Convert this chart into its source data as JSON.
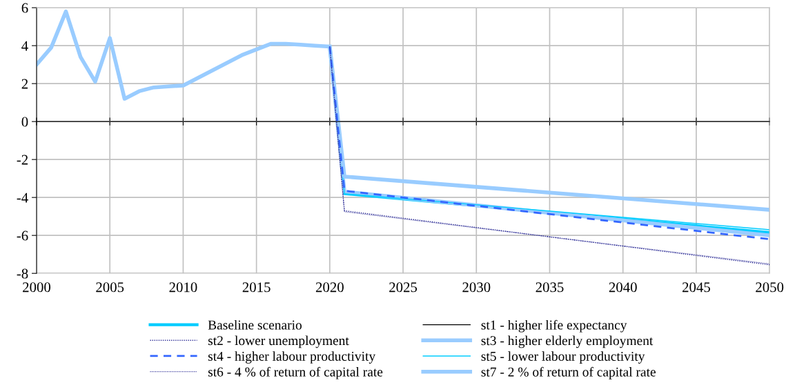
{
  "chart_data": {
    "type": "line",
    "x": [
      2000,
      2001,
      2002,
      2003,
      2004,
      2005,
      2006,
      2007,
      2008,
      2009,
      2010,
      2011,
      2012,
      2013,
      2014,
      2015,
      2016,
      2017,
      2018,
      2019,
      2020,
      2021,
      2050
    ],
    "series": [
      {
        "name": "Baseline scenario",
        "color": "#00ccff",
        "line_style": "solid",
        "values": [
          null,
          null,
          null,
          null,
          null,
          null,
          null,
          null,
          null,
          null,
          null,
          null,
          null,
          null,
          null,
          null,
          null,
          null,
          null,
          null,
          3.95,
          -3.8,
          -5.85
        ]
      },
      {
        "name": "st1 - higher life expectancy",
        "color": "#000000",
        "line_style": "solid",
        "values": [
          null,
          null,
          null,
          null,
          null,
          null,
          null,
          null,
          null,
          null,
          null,
          null,
          null,
          null,
          null,
          null,
          null,
          null,
          null,
          null,
          null,
          null,
          null
        ]
      },
      {
        "name": "st2 - lower unemployment",
        "color": "#333399",
        "line_style": "dotted",
        "values": [
          null,
          null,
          null,
          null,
          null,
          null,
          null,
          null,
          null,
          null,
          null,
          null,
          null,
          null,
          null,
          null,
          null,
          null,
          null,
          null,
          3.95,
          -4.7,
          -7.55
        ]
      },
      {
        "name": "st3 - higher elderly employment",
        "color": "#99ccff",
        "line_style": "solid",
        "values": [
          null,
          null,
          null,
          null,
          null,
          null,
          null,
          null,
          null,
          null,
          null,
          null,
          null,
          null,
          null,
          null,
          null,
          null,
          null,
          null,
          3.95,
          -3.7,
          -6.0
        ]
      },
      {
        "name": "st4 - higher labour productivity",
        "color": "#3366ff",
        "line_style": "dashed",
        "values": [
          null,
          null,
          null,
          null,
          null,
          null,
          null,
          null,
          null,
          null,
          null,
          null,
          null,
          null,
          null,
          null,
          null,
          null,
          null,
          null,
          3.95,
          -3.65,
          -6.2
        ]
      },
      {
        "name": "st5 - lower labour productivity",
        "color": "#00ccff",
        "line_style": "solid",
        "values": [
          null,
          null,
          null,
          null,
          null,
          null,
          null,
          null,
          null,
          null,
          null,
          null,
          null,
          null,
          null,
          null,
          null,
          null,
          null,
          null,
          3.95,
          -3.8,
          -5.7
        ]
      },
      {
        "name": "st6 - 4 % of return of capital rate",
        "color": "#333399",
        "line_style": "dotted",
        "values": [
          null,
          null,
          null,
          null,
          null,
          null,
          null,
          null,
          null,
          null,
          null,
          null,
          null,
          null,
          null,
          null,
          null,
          null,
          null,
          null,
          3.95,
          -4.75,
          -7.5
        ]
      },
      {
        "name": "st7 - 2 % of return of capital rate",
        "color": "#99ccff",
        "line_style": "solid",
        "values": [
          3.0,
          3.9,
          5.8,
          3.4,
          2.1,
          4.4,
          1.2,
          1.6,
          1.8,
          1.85,
          1.9,
          2.3,
          2.7,
          3.1,
          3.5,
          3.8,
          4.1,
          4.1,
          4.05,
          4.0,
          3.95,
          -2.9,
          -4.65
        ]
      }
    ],
    "xlim": [
      2000,
      2050
    ],
    "xticks": [
      2000,
      2005,
      2010,
      2015,
      2020,
      2025,
      2030,
      2035,
      2040,
      2045,
      2050
    ],
    "ylim": [
      -8,
      6
    ],
    "yticks": [
      -8,
      -6,
      -4,
      -2,
      0,
      2,
      4,
      6
    ],
    "grid": true,
    "legend": "bottom",
    "marker": "none"
  }
}
